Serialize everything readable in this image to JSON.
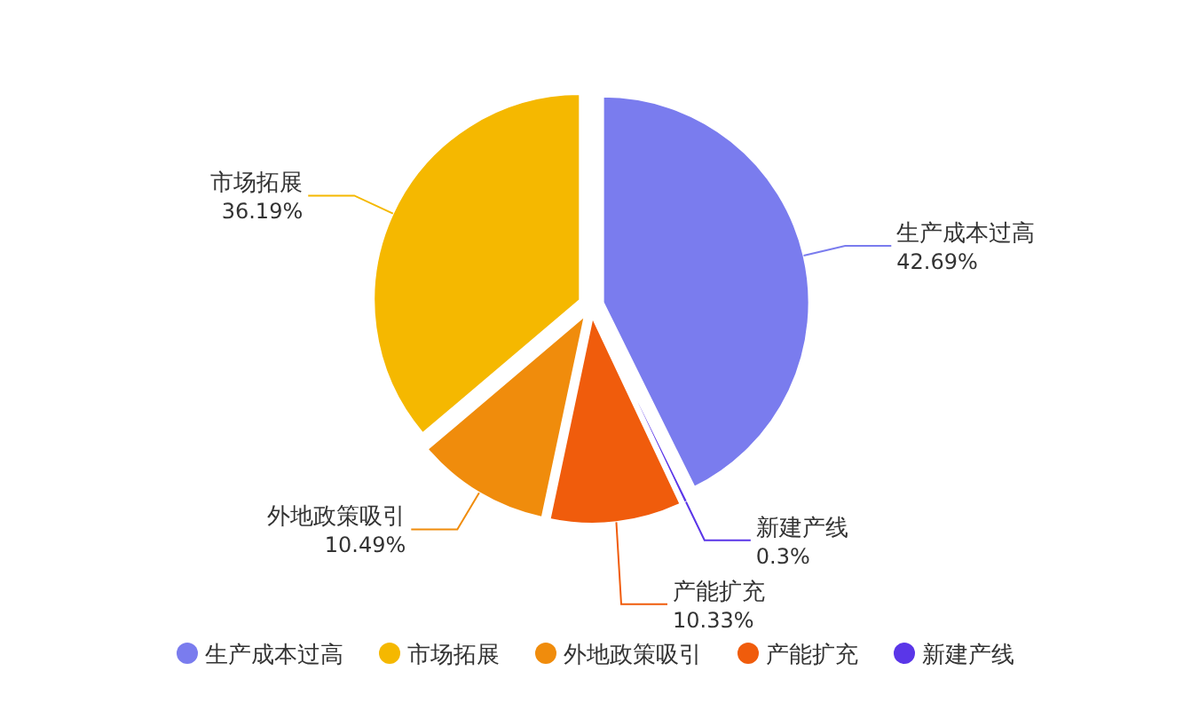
{
  "chart_data": {
    "type": "pie",
    "categories": [
      "生产成本过高",
      "市场拓展",
      "外地政策吸引",
      "产能扩充",
      "新建产线"
    ],
    "values": [
      42.69,
      36.19,
      10.49,
      10.33,
      0.3
    ],
    "colors": [
      "#7a7cee",
      "#f5b800",
      "#f08c0c",
      "#f05c0c",
      "#5a36e8"
    ],
    "value_labels": [
      "42.69%",
      "36.19%",
      "10.49%",
      "10.33%",
      "0.3%"
    ],
    "legend": "bottom"
  }
}
